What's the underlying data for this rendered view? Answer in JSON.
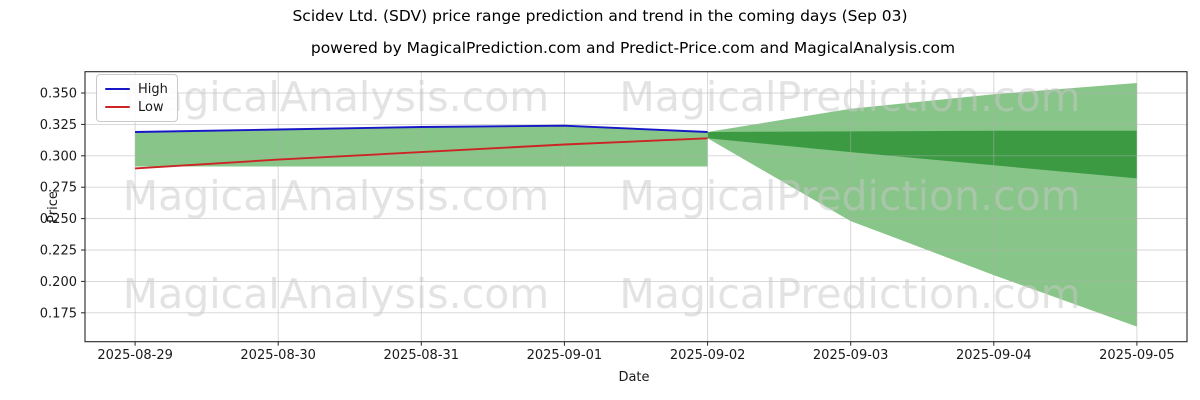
{
  "title": "Scidev Ltd. (SDV) price range prediction and trend in the coming days (Sep 03)",
  "subtitle": "powered by MagicalPrediction.com and Predict-Price.com and MagicalAnalysis.com",
  "watermarks": {
    "left": "MagicalAnalysis.com",
    "right": "MagicalPrediction.com"
  },
  "colors": {
    "high_line": "#1717c8",
    "low_line": "#cc2525",
    "band_light": "#88c588",
    "band_dark": "#3b9a42",
    "grid": "#b0b0b0",
    "spine": "#262626",
    "text": "#1a1a1a",
    "watermark": "#c8c8c8"
  },
  "chart_data": {
    "type": "line",
    "title": "Scidev Ltd. (SDV) price range prediction and trend in the coming days (Sep 03)",
    "xlabel": "Date",
    "ylabel": "Price",
    "grid": true,
    "legend_position": "upper left",
    "categories": [
      "2025-08-29",
      "2025-08-30",
      "2025-08-31",
      "2025-09-01",
      "2025-09-02",
      "2025-09-03",
      "2025-09-04",
      "2025-09-05"
    ],
    "y_ticks": [
      0.35,
      0.325,
      0.3,
      0.275,
      0.25,
      0.225,
      0.2,
      0.175
    ],
    "ylim": [
      0.152,
      0.367
    ],
    "x_pad": 0.35,
    "series": [
      {
        "name": "High",
        "color": "#1717c8",
        "x": [
          0,
          1,
          2,
          3,
          4
        ],
        "values": [
          0.319,
          0.321,
          0.323,
          0.324,
          0.319
        ]
      },
      {
        "name": "Low",
        "color": "#cc2525",
        "x": [
          0,
          1,
          2,
          3,
          4
        ],
        "values": [
          0.29,
          0.297,
          0.303,
          0.309,
          0.314
        ]
      }
    ],
    "bands": [
      {
        "name": "history-range",
        "color": "#88c588",
        "top_x": [
          0,
          1,
          2,
          3,
          4
        ],
        "top": [
          0.319,
          0.321,
          0.323,
          0.324,
          0.319
        ],
        "bottom_x": [
          4,
          0
        ],
        "bottom": [
          0.2915,
          0.2915
        ]
      },
      {
        "name": "forecast-outer",
        "color": "#88c588",
        "top_x": [
          4,
          5,
          6,
          7
        ],
        "top": [
          0.319,
          0.3375,
          0.349,
          0.358
        ],
        "bottom_x": [
          7,
          6,
          5,
          4
        ],
        "bottom": [
          0.164,
          0.205,
          0.248,
          0.314
        ]
      },
      {
        "name": "forecast-inner",
        "color": "#3b9a42",
        "top_x": [
          4,
          5,
          6,
          7
        ],
        "top": [
          0.319,
          0.3195,
          0.32,
          0.32
        ],
        "bottom_x": [
          7,
          6,
          5,
          4
        ],
        "bottom": [
          0.282,
          0.2925,
          0.303,
          0.314
        ]
      }
    ]
  },
  "legend": {
    "items": [
      {
        "label": "High",
        "color": "#1717c8"
      },
      {
        "label": "Low",
        "color": "#cc2525"
      }
    ]
  }
}
